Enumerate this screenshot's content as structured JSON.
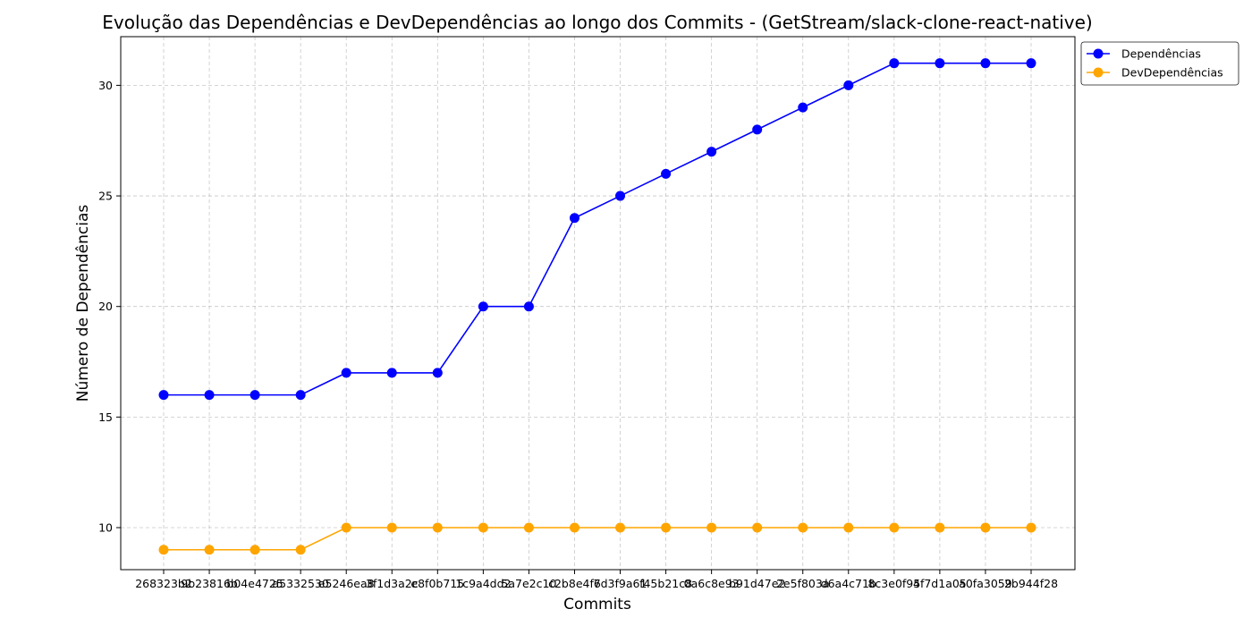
{
  "chart_data": {
    "type": "line",
    "title": "Evolução das Dependências e DevDependências ao longo dos Commits - (GetStream/slack-clone-react-native)",
    "xlabel": "Commits",
    "ylabel": "Número de Dependências",
    "categories": [
      "268323b2",
      "9b23816b",
      "b04e4725",
      "a5332530",
      "e5246ea8",
      "3f1d3a2c",
      "e8f0b715",
      "1c9a4dd2",
      "5a7e2c10",
      "c2b8e4f6",
      "7d3f9a61",
      "f45b21c8",
      "0a6c8e93",
      "b91d47e2",
      "2e5f803a",
      "d6a4c71b",
      "8c3e0f95",
      "4f7d1a05",
      "a0fa3059",
      "2b944f28"
    ],
    "ylim": [
      8.1,
      32.2
    ],
    "yticks": [
      10,
      15,
      20,
      25,
      30
    ],
    "grid": true,
    "legend_position": "top-right",
    "series": [
      {
        "name": "Dependências",
        "color": "#0000ff",
        "values": [
          16,
          16,
          16,
          16,
          17,
          17,
          17,
          20,
          20,
          24,
          25,
          26,
          27,
          28,
          29,
          30,
          31,
          31,
          31,
          31
        ]
      },
      {
        "name": "DevDependências",
        "color": "#ffa500",
        "values": [
          9,
          9,
          9,
          9,
          10,
          10,
          10,
          10,
          10,
          10,
          10,
          10,
          10,
          10,
          10,
          10,
          10,
          10,
          10,
          10
        ]
      }
    ]
  }
}
